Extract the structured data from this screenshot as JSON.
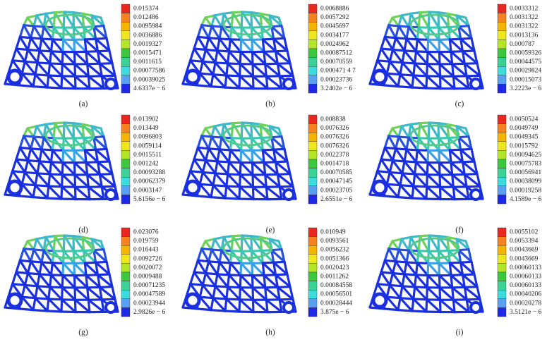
{
  "panels": [
    {
      "label": "(a)",
      "legend": [
        "0.015374",
        "0.012486",
        "0.0095984",
        "0.0036886",
        "0.0019327",
        "0.0015471",
        "0.0011615",
        "0.00077586",
        "0.00039025",
        "4.6337e − 6"
      ]
    },
    {
      "label": "(b)",
      "legend": [
        "0.0068886",
        "0.0057292",
        "0.0045697",
        "0.0034177",
        "0.0024962",
        "0.00087512",
        "0.00070559",
        "0.000471 4 7",
        "0.00023736",
        "3.2402e − 6"
      ]
    },
    {
      "label": "(c)",
      "legend": [
        "0.0033312",
        "0.0031322",
        "0.0031322",
        "0.0013136",
        "0.000787",
        "0.00059326",
        "0.00044575",
        "0.00029824",
        "0.00015073",
        "3.2223e − 6"
      ]
    },
    {
      "label": "(d)",
      "legend": [
        "0.013902",
        "0.013449",
        "0.0096803",
        "0.0059114",
        "0.0015511",
        "0.001242",
        "0.00093288",
        "0.00062379",
        "0.0003147",
        "5.6156e − 6"
      ]
    },
    {
      "label": "(e)",
      "legend": [
        "0.008838",
        "0.0076326",
        "0.0076326",
        "0.0076326",
        "0.0022378",
        "0.0014718",
        "0.00070585",
        "0.00047145",
        "0.00023705",
        "2.6551e − 6"
      ]
    },
    {
      "label": "(f)",
      "legend": [
        "0.0050524",
        "0.0049749",
        "0.0049345",
        "0.0015792",
        "0.00094625",
        "0.00075783",
        "0.00056941",
        "0.00038099",
        "0.00019258",
        "4.1589e − 6"
      ]
    },
    {
      "label": "(g)",
      "legend": [
        "0.023076",
        "0.019759",
        "0.016443",
        "0.0092726",
        "0.0020072",
        "0.0009488",
        "0.00071235",
        "0.00047589",
        "0.00023944",
        "2.9826e − 6"
      ]
    },
    {
      "label": "(h)",
      "legend": [
        "0.010949",
        "0.0093561",
        "0.0056232",
        "0.0051366",
        "0.0020423",
        "0.0011262",
        "0.00084558",
        "0.00056501",
        "0.00028444",
        "3.875e − 6"
      ]
    },
    {
      "label": "(i)",
      "legend": [
        "0.0055102",
        "0.0053394",
        "0.0043669",
        "0.0043669",
        "0.00060133",
        "0.00060133",
        "0.00060133",
        "0.00040206",
        "0.00020278",
        "3.5121e − 6"
      ]
    }
  ]
}
